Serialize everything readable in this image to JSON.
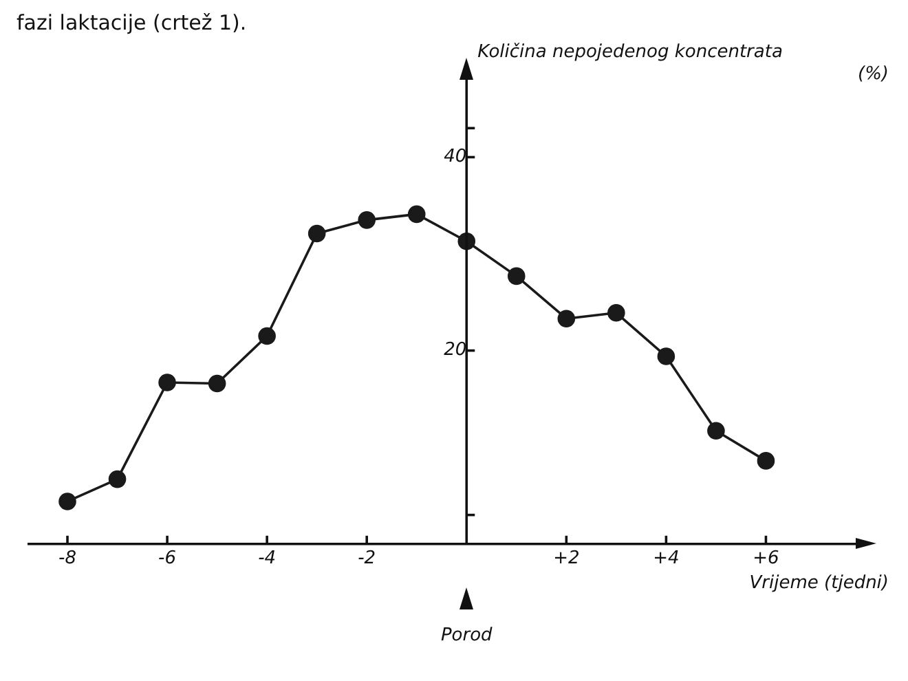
{
  "chart_data": {
    "type": "line",
    "ylabel": "Količina nepojedenog koncentrata (%)",
    "xlabel": "Vrijeme (tjedni)",
    "annotations": [
      "fazi laktacije (crtež 1).",
      "Porod"
    ],
    "x": [
      -8,
      -7,
      -6,
      -5,
      -4,
      -3,
      -2,
      -1,
      0,
      1,
      2,
      3,
      4,
      5,
      6
    ],
    "series": [
      {
        "color": "#1a1a1a",
        "values": [
          4.4,
          6.7,
          16.7,
          16.6,
          21.5,
          32.1,
          33.5,
          34.1,
          31.3,
          27.7,
          23.3,
          23.9,
          19.4,
          11.7,
          8.6
        ]
      }
    ],
    "xlim": [
      -8.8,
      7.8
    ],
    "ylim": [
      0,
      48
    ],
    "xticks": [
      -8,
      -6,
      -4,
      -2,
      {
        "value": 2,
        "label": "+2"
      },
      {
        "value": 4,
        "label": "+4"
      },
      {
        "value": 6,
        "label": "+6"
      }
    ],
    "yticks": [
      {
        "value": 3,
        "label": null
      },
      20,
      40,
      {
        "value": 43,
        "label": null
      }
    ],
    "grid": false,
    "legend": false,
    "marker": "circle",
    "line_style": "solid"
  }
}
